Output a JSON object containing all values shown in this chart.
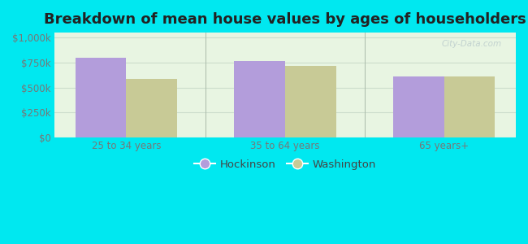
{
  "title": "Breakdown of mean house values by ages of householders",
  "categories": [
    "25 to 34 years",
    "35 to 64 years",
    "65 years+"
  ],
  "hockinson_values": [
    795000,
    770000,
    615000
  ],
  "washington_values": [
    590000,
    715000,
    608000
  ],
  "hockinson_color": "#b39ddb",
  "washington_color": "#c8ca96",
  "background_outer": "#00e8f0",
  "background_inner_topleft": "#e8f5e9",
  "background_inner_topright": "#f5f5f0",
  "background_inner_bottom": "#d4edda",
  "yticks": [
    0,
    250000,
    500000,
    750000,
    1000000
  ],
  "ytick_labels": [
    "$0",
    "$250k",
    "$500k",
    "$750k",
    "$1,000k"
  ],
  "ylim": [
    0,
    1050000
  ],
  "legend_labels": [
    "Hockinson",
    "Washington"
  ],
  "bar_width": 0.32,
  "grid_color": "#ccddcc",
  "title_fontsize": 13,
  "tick_fontsize": 8.5,
  "legend_fontsize": 9.5,
  "tick_color": "#777777",
  "title_color": "#222222"
}
